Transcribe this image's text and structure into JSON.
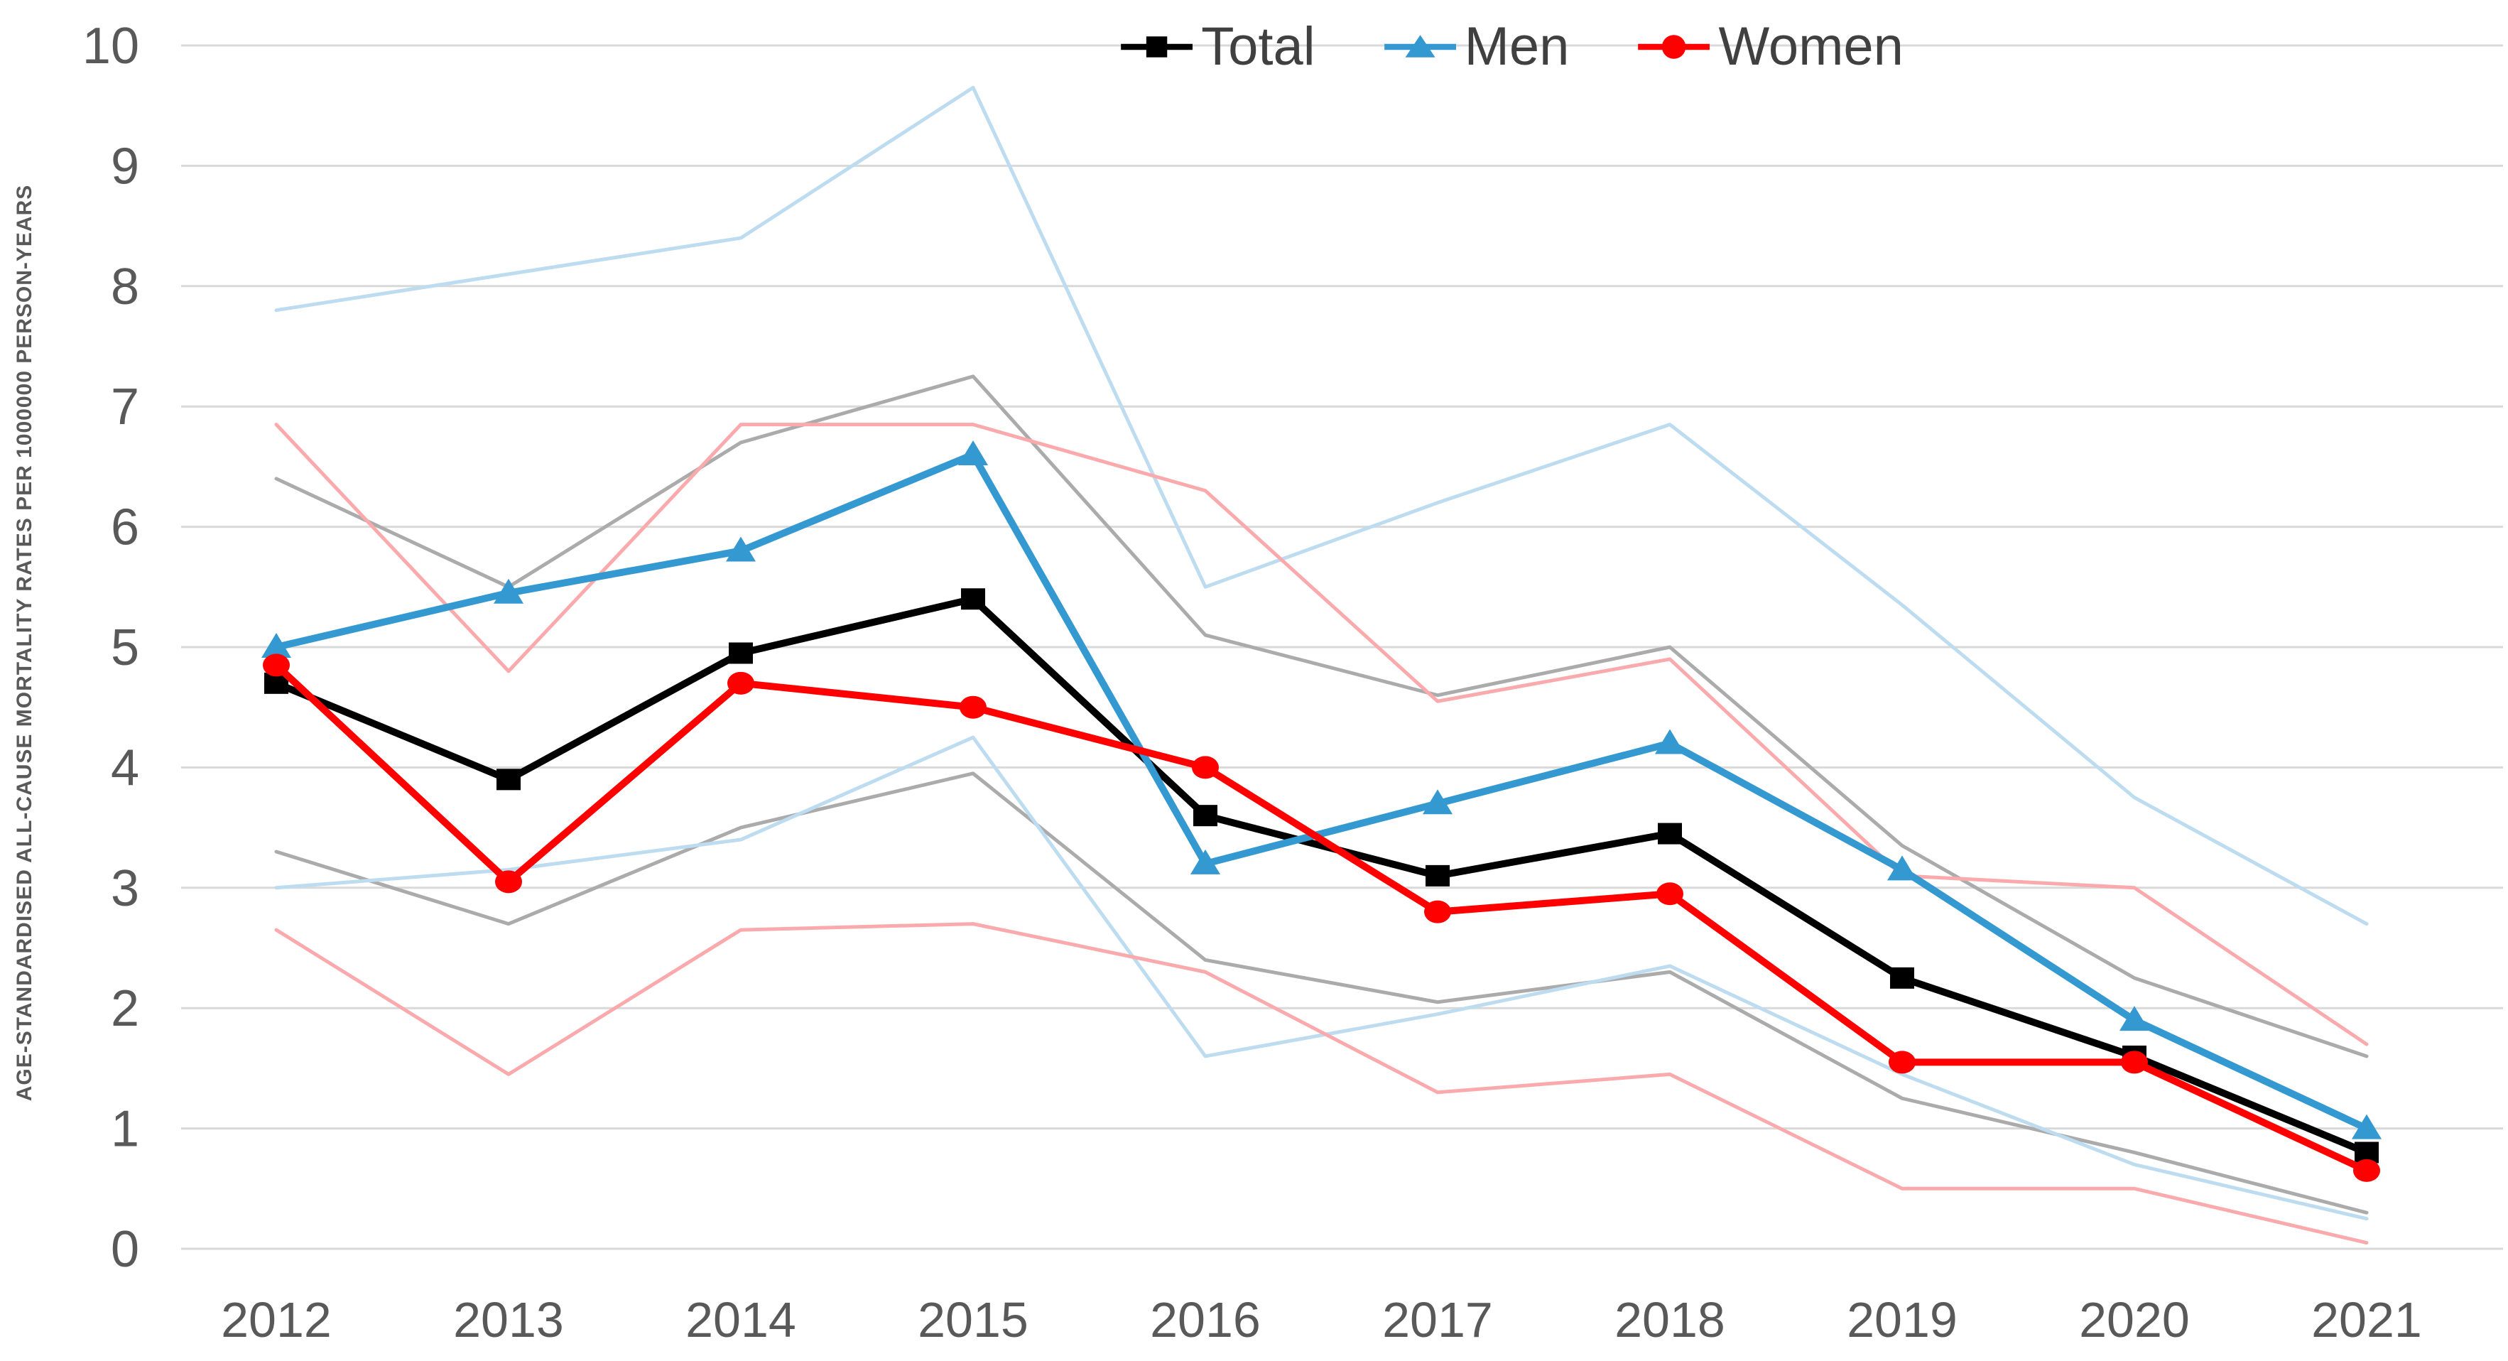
{
  "chart_data": {
    "type": "line",
    "title": "",
    "xlabel": "",
    "ylabel": "AGE-STANDARDISED ALL-CAUSE MORTALITY RATES PER 1000000 PERSON-YEARS",
    "categories": [
      "2012",
      "2013",
      "2014",
      "2015",
      "2016",
      "2017",
      "2018",
      "2019",
      "2020",
      "2021"
    ],
    "ylim": [
      0,
      10
    ],
    "yticks": [
      0,
      1,
      2,
      3,
      4,
      5,
      6,
      7,
      8,
      9,
      10
    ],
    "grid": "horizontal",
    "legend_position": "top-center",
    "series": [
      {
        "name": "Total",
        "marker": "square",
        "color": "#000000",
        "values": [
          4.7,
          3.9,
          4.95,
          5.4,
          3.6,
          3.1,
          3.45,
          2.25,
          1.6,
          0.8
        ]
      },
      {
        "name": "Men",
        "marker": "triangle",
        "color": "#3498D1",
        "values": [
          5.0,
          5.45,
          5.8,
          6.6,
          3.2,
          3.7,
          4.2,
          3.15,
          1.9,
          1.0
        ]
      },
      {
        "name": "Women",
        "marker": "circle",
        "color": "#FF0000",
        "values": [
          4.85,
          3.05,
          4.7,
          4.5,
          4.0,
          2.8,
          2.95,
          1.55,
          1.55,
          0.65
        ]
      }
    ],
    "confidence_bands": [
      {
        "series": "Total",
        "color": "#ABABAB",
        "upper": [
          6.4,
          5.5,
          6.7,
          7.25,
          5.1,
          4.6,
          5.0,
          3.35,
          2.25,
          1.6
        ],
        "lower": [
          3.3,
          2.7,
          3.5,
          3.95,
          2.4,
          2.05,
          2.3,
          1.25,
          0.8,
          0.3
        ]
      },
      {
        "series": "Men",
        "color": "#BDDCF0",
        "upper": [
          7.8,
          8.1,
          8.4,
          9.65,
          5.5,
          6.2,
          6.85,
          5.35,
          3.75,
          2.7
        ],
        "lower": [
          3.0,
          3.15,
          3.4,
          4.25,
          1.6,
          1.95,
          2.35,
          1.45,
          0.7,
          0.25
        ]
      },
      {
        "series": "Women",
        "color": "#FAAAAD",
        "upper": [
          6.85,
          4.8,
          6.85,
          6.85,
          6.3,
          4.55,
          4.9,
          3.1,
          3.0,
          1.7
        ],
        "lower": [
          2.65,
          1.45,
          2.65,
          2.7,
          2.3,
          1.3,
          1.45,
          0.5,
          0.5,
          0.05
        ]
      }
    ],
    "colors": {
      "gridline": "#D9D9D9",
      "axis_text": "#595959",
      "legend_text": "#404040",
      "background": "#FFFFFF"
    }
  }
}
